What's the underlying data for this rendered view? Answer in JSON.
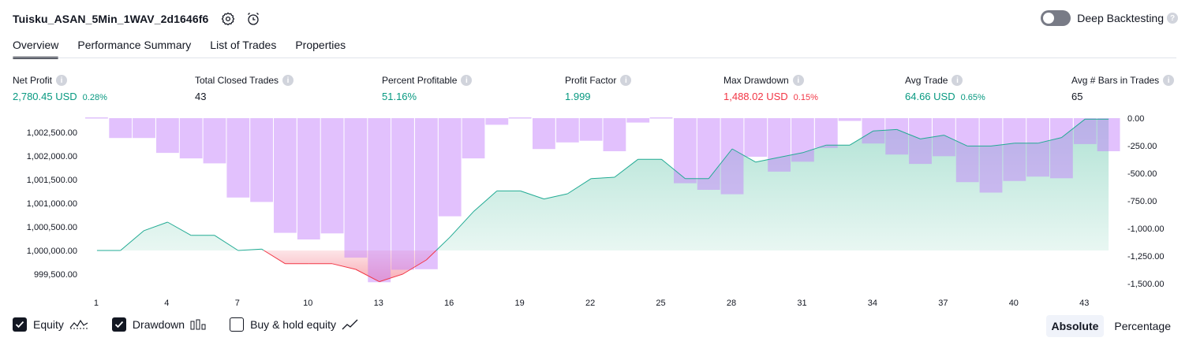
{
  "header": {
    "strategy_name": "Tuisku_ASAN_5Min_1WAV_2d1646f6",
    "settings_icon": "gear-icon",
    "alert_icon": "alarm-clock-plus-icon",
    "deep_backtesting_label": "Deep Backtesting",
    "deep_backtesting_enabled": false
  },
  "tabs": [
    {
      "label": "Overview",
      "active": true
    },
    {
      "label": "Performance Summary",
      "active": false
    },
    {
      "label": "List of Trades",
      "active": false
    },
    {
      "label": "Properties",
      "active": false
    }
  ],
  "stats": {
    "net_profit": {
      "label": "Net Profit",
      "value": "2,780.45 USD",
      "pct": "0.28%"
    },
    "total_closed_trades": {
      "label": "Total Closed Trades",
      "value": "43"
    },
    "percent_profitable": {
      "label": "Percent Profitable",
      "value": "51.16%"
    },
    "profit_factor": {
      "label": "Profit Factor",
      "value": "1.999"
    },
    "max_drawdown": {
      "label": "Max Drawdown",
      "value": "1,488.02 USD",
      "pct": "0.15%"
    },
    "avg_trade": {
      "label": "Avg Trade",
      "value": "64.66 USD",
      "pct": "0.65%"
    },
    "avg_bars": {
      "label": "Avg # Bars in Trades",
      "value": "65"
    }
  },
  "colors": {
    "positive": "#089981",
    "negative": "#f23645",
    "equity_line": "#22ab94",
    "equity_fill": "#d4efe8",
    "drawdown_loss_line": "#f23645",
    "drawdown_bar": "#dfc2fb"
  },
  "chart_data": {
    "type": "area",
    "title": "",
    "x_tick_labels": [
      "1",
      "4",
      "7",
      "10",
      "13",
      "16",
      "19",
      "22",
      "25",
      "28",
      "31",
      "34",
      "37",
      "40",
      "43"
    ],
    "left_axis": {
      "ylim": [
        999350,
        1002800
      ],
      "tick_labels": [
        "1,002,500.00",
        "1,002,000.00",
        "1,001,500.00",
        "1,001,000.00",
        "1,000,500.00",
        "1,000,000.00",
        "999,500.00"
      ],
      "tick_values": [
        1002500,
        1002000,
        1001500,
        1001000,
        1000500,
        1000000,
        999500
      ]
    },
    "right_axis": {
      "ylim": [
        -1600,
        0
      ],
      "tick_labels": [
        "0.00",
        "-250.00",
        "-500.00",
        "-750.00",
        "-1,000.00",
        "-1,250.00",
        "-1,500.00"
      ],
      "tick_values": [
        0,
        -250,
        -500,
        -750,
        -1000,
        -1250,
        -1500
      ]
    },
    "baseline": 1000000,
    "series": [
      {
        "name": "Equity",
        "trades": [
          1,
          2,
          3,
          4,
          5,
          6,
          7,
          8,
          9,
          10,
          11,
          12,
          13,
          14,
          15,
          16,
          17,
          18,
          19,
          20,
          21,
          22,
          23,
          24,
          25,
          26,
          27,
          28,
          29,
          30,
          31,
          32,
          33,
          34,
          35,
          36,
          37,
          38,
          39,
          40,
          41,
          42,
          43,
          44
        ],
        "values": [
          1000000,
          1000000,
          1000420,
          1000600,
          1000320,
          1000320,
          1000000,
          1000030,
          999720,
          999720,
          999720,
          999600,
          999340,
          999500,
          999800,
          1000280,
          1000820,
          1001260,
          1001260,
          1001090,
          1001200,
          1001520,
          1001550,
          1001930,
          1001930,
          1001520,
          1001520,
          1002150,
          1001870,
          1001970,
          1002070,
          1002230,
          1002230,
          1002530,
          1002560,
          1002360,
          1002440,
          1002210,
          1002210,
          1002270,
          1002270,
          1002390,
          1002780,
          1002780
        ]
      },
      {
        "name": "Drawdown",
        "trades": [
          1,
          2,
          3,
          4,
          5,
          6,
          7,
          8,
          9,
          10,
          11,
          12,
          13,
          14,
          15,
          16,
          17,
          18,
          19,
          20,
          21,
          22,
          23,
          24,
          25,
          26,
          27,
          28,
          29,
          30,
          31,
          32,
          33,
          34,
          35,
          36,
          37,
          38,
          39,
          40,
          41,
          42,
          43,
          44
        ],
        "values": [
          0,
          -180,
          -180,
          -315,
          -365,
          -410,
          -720,
          -760,
          -1040,
          -1100,
          -1045,
          -1265,
          -1488,
          -1375,
          -1370,
          -890,
          -365,
          -60,
          0,
          -280,
          -220,
          -205,
          -300,
          -40,
          0,
          -590,
          -650,
          -690,
          -350,
          -485,
          -395,
          -270,
          -25,
          -230,
          -330,
          -415,
          -345,
          -580,
          -675,
          -570,
          -530,
          -545,
          -235,
          -300
        ]
      },
      {
        "name": "Buy & hold equity",
        "visible": false,
        "values": []
      }
    ]
  },
  "legend": {
    "equity": {
      "label": "Equity",
      "checked": true
    },
    "drawdown": {
      "label": "Drawdown",
      "checked": true
    },
    "buy_hold": {
      "label": "Buy & hold equity",
      "checked": false
    }
  },
  "mode": {
    "absolute": "Absolute",
    "percentage": "Percentage",
    "active": "absolute"
  }
}
